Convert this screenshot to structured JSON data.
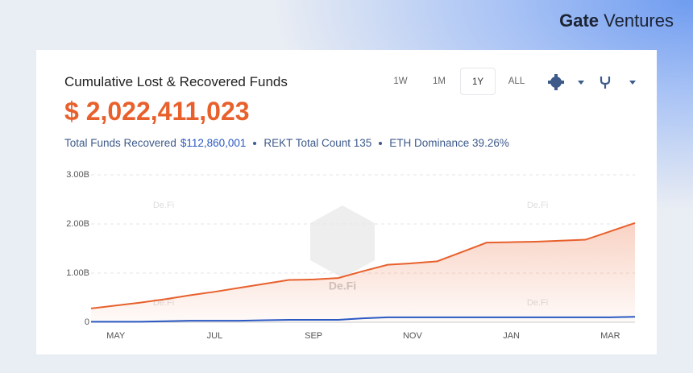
{
  "brand": "Gate",
  "brand_suffix": "Ventures",
  "card": {
    "title": "Cumulative Lost & Recovered Funds",
    "total": "$ 2,022,411,023",
    "ranges": [
      "1W",
      "1M",
      "1Y",
      "ALL"
    ],
    "stats": [
      "Total Funds Recovered",
      "$112,860,001",
      "REKT Total Count 135",
      "ETH Dominance 39.26%"
    ],
    "watermark": "De.Fi"
  },
  "chart_data": {
    "type": "line",
    "categories": [
      null,
      "MAY",
      null,
      null,
      null,
      "JUL",
      null,
      null,
      null,
      "SEP",
      null,
      null,
      null,
      "NOV",
      null,
      null,
      null,
      "JAN",
      null,
      null,
      null,
      "MAR",
      null
    ],
    "series": [
      {
        "color": "#e8602c",
        "values": [
          0.28,
          0.34,
          0.4,
          0.47,
          0.55,
          0.62,
          0.7,
          0.78,
          0.86,
          0.87,
          0.9,
          1.04,
          1.17,
          1.2,
          1.24,
          1.43,
          1.62,
          1.63,
          1.64,
          1.66,
          1.68,
          1.85,
          2.02
        ]
      },
      {
        "color": "#2b59c3",
        "values": [
          0.01,
          0.01,
          0.01,
          0.02,
          0.03,
          0.03,
          0.03,
          0.04,
          0.05,
          0.05,
          0.05,
          0.08,
          0.1,
          0.1,
          0.1,
          0.1,
          0.1,
          0.1,
          0.1,
          0.1,
          0.1,
          0.1,
          0.11
        ]
      }
    ],
    "ylim": [
      0,
      3
    ],
    "yticks": [
      0,
      {
        "value": 1,
        "label": "1.00B"
      },
      {
        "value": 2,
        "label": "2.00B"
      },
      {
        "value": 3,
        "label": "3.00B"
      }
    ],
    "grid": true
  }
}
